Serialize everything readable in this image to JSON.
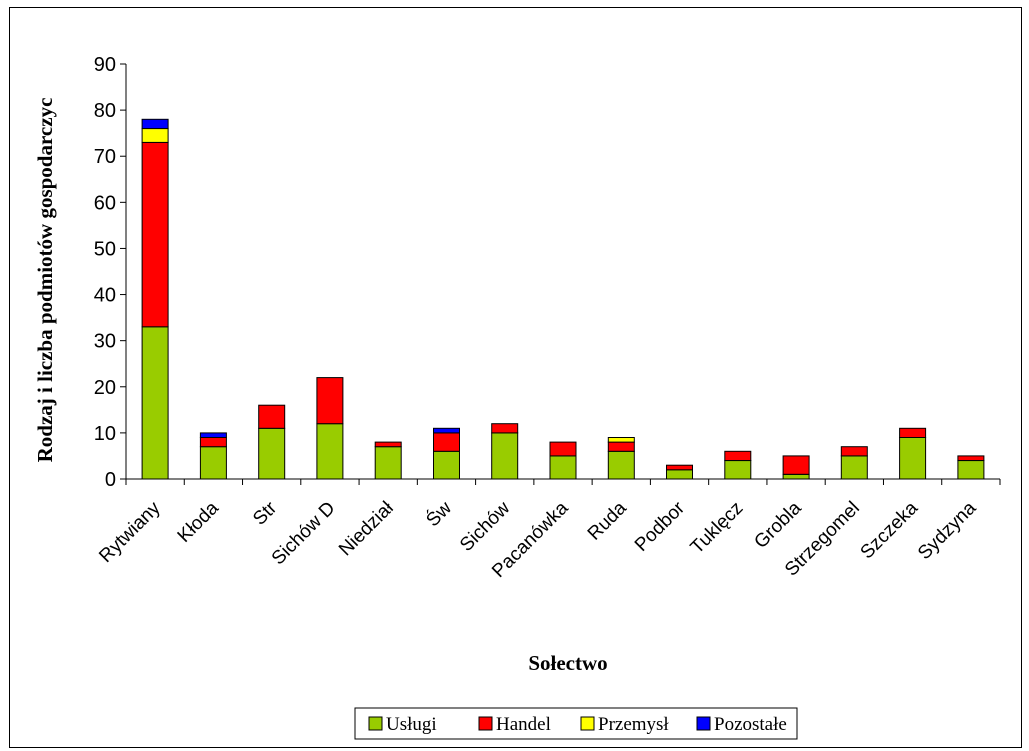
{
  "chart_data": {
    "type": "bar",
    "stacked": true,
    "title": "",
    "xlabel": "Sołectwo",
    "ylabel": "Rodzaj i liczba podmiotów gospodarczyc",
    "ylim": [
      0,
      90
    ],
    "yticks": [
      0,
      10,
      20,
      30,
      40,
      50,
      60,
      70,
      80,
      90
    ],
    "grid": false,
    "legend_position": "bottom",
    "categories": [
      "Rytwiany",
      "Kłoda",
      "Str",
      "Sichów D",
      "Niedział",
      "Św",
      "Sichów",
      "Pacanówka",
      "Ruda",
      "Podbor",
      "Tuklęcz",
      "Grobla",
      "Strzegomel",
      "Szczeka",
      "Sydzyna"
    ],
    "series": [
      {
        "name": "Usługi",
        "color": "#99cc00",
        "values": [
          33,
          7,
          11,
          12,
          7,
          6,
          10,
          5,
          6,
          2,
          4,
          1,
          5,
          9,
          4
        ]
      },
      {
        "name": "Handel",
        "color": "#ff0000",
        "values": [
          40,
          2,
          5,
          10,
          1,
          4,
          2,
          3,
          2,
          1,
          2,
          4,
          2,
          2,
          1
        ]
      },
      {
        "name": "Przemysł",
        "color": "#ffff00",
        "values": [
          3,
          0,
          0,
          0,
          0,
          0,
          0,
          0,
          1,
          0,
          0,
          0,
          0,
          0,
          0
        ]
      },
      {
        "name": "Pozostałe",
        "color": "#0000ff",
        "values": [
          2,
          1,
          0,
          0,
          0,
          1,
          0,
          0,
          0,
          0,
          0,
          0,
          0,
          0,
          0
        ]
      }
    ]
  }
}
